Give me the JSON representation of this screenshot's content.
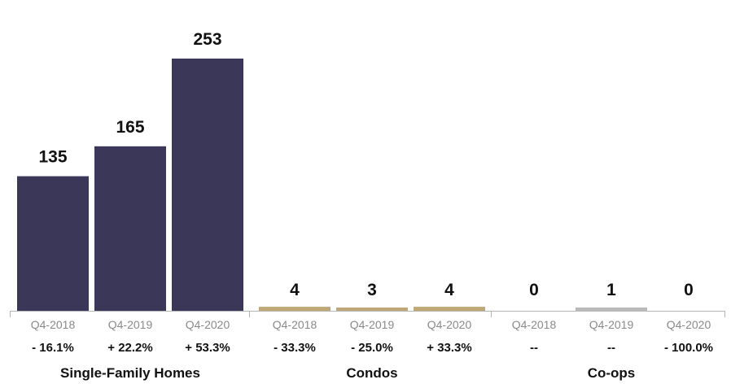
{
  "chart_data": {
    "type": "bar",
    "title": "",
    "xlabel": "",
    "ylabel": "",
    "ylim": [
      0,
      253
    ],
    "grid": false,
    "groups": [
      {
        "name": "Single-Family Homes",
        "color": "#3a3758",
        "bars": [
          {
            "period": "Q4-2018",
            "value": 135,
            "value_label": "135",
            "change": "- 16.1%"
          },
          {
            "period": "Q4-2019",
            "value": 165,
            "value_label": "165",
            "change": "+ 22.2%"
          },
          {
            "period": "Q4-2020",
            "value": 253,
            "value_label": "253",
            "change": "+ 53.3%"
          }
        ]
      },
      {
        "name": "Condos",
        "color": "#bfa878",
        "bars": [
          {
            "period": "Q4-2018",
            "value": 4,
            "value_label": "4",
            "change": "- 33.3%"
          },
          {
            "period": "Q4-2019",
            "value": 3,
            "value_label": "3",
            "change": "- 25.0%"
          },
          {
            "period": "Q4-2020",
            "value": 4,
            "value_label": "4",
            "change": "+ 33.3%"
          }
        ]
      },
      {
        "name": "Co-ops",
        "color": "#b9b9b9",
        "bars": [
          {
            "period": "Q4-2018",
            "value": 0,
            "value_label": "0",
            "change": "--"
          },
          {
            "period": "Q4-2019",
            "value": 1,
            "value_label": "1",
            "change": "--"
          },
          {
            "period": "Q4-2020",
            "value": 0,
            "value_label": "0",
            "change": "- 100.0%"
          }
        ]
      }
    ]
  }
}
